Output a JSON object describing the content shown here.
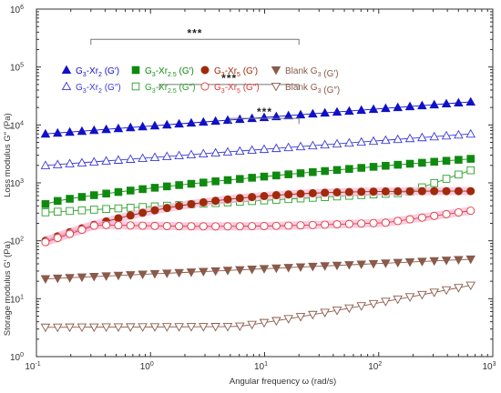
{
  "chart_data": {
    "type": "scatter",
    "title": "",
    "xlabel": "Angular frequency  ω  (rad/s)",
    "ylabel_top": "Loss modulus G″ (Pa)",
    "ylabel_bottom": "Storage modulus G′ (Pa)",
    "x_scale": "log",
    "y_scale": "log",
    "xlim": [
      0.1,
      1000
    ],
    "ylim": [
      1,
      1000000
    ],
    "x_ticks": [
      {
        "value": 0.1,
        "base": "10",
        "exp": "-1"
      },
      {
        "value": 1,
        "base": "10",
        "exp": "0"
      },
      {
        "value": 10,
        "base": "10",
        "exp": "1"
      },
      {
        "value": 100,
        "base": "10",
        "exp": "2"
      },
      {
        "value": 1000,
        "base": "10",
        "exp": "3"
      }
    ],
    "y_ticks": [
      {
        "value": 1,
        "base": "10",
        "exp": "0"
      },
      {
        "value": 10,
        "base": "10",
        "exp": "1"
      },
      {
        "value": 100,
        "base": "10",
        "exp": "2"
      },
      {
        "value": 1000,
        "base": "10",
        "exp": "3"
      },
      {
        "value": 10000,
        "base": "10",
        "exp": "4"
      },
      {
        "value": 100000,
        "base": "10",
        "exp": "5"
      },
      {
        "value": 1000000,
        "base": "10",
        "exp": "6"
      }
    ],
    "legend_position": "top",
    "legend_layout": "2 rows x 4 columns",
    "series": [
      {
        "name_main": "G",
        "name_sub": "3",
        "name_rest": "-Xr",
        "name_sub2": "2",
        "name_mod": " (G′)",
        "color": "#1010c8",
        "marker": "triangle-up",
        "filled": true,
        "x_range": [
          0.12,
          640
        ],
        "y_start": 7000,
        "y_end": 25000,
        "shape": "linear"
      },
      {
        "name_main": "G",
        "name_sub": "3",
        "name_rest": "-Xr",
        "name_sub2": "2",
        "name_mod": " (G″)",
        "color": "#3a3ad8",
        "marker": "triangle-up",
        "filled": false,
        "x_range": [
          0.12,
          640
        ],
        "y_start": 2000,
        "y_end": 7000,
        "shape": "linear"
      },
      {
        "name_main": "G",
        "name_sub": "3",
        "name_rest": "-Xr",
        "name_sub2": "2.5",
        "name_mod": " (G′)",
        "color": "#0f8a0f",
        "marker": "square",
        "filled": true,
        "x_range": [
          0.12,
          640
        ],
        "y_start": 430,
        "y_end": 2600,
        "shape": "concave"
      },
      {
        "name_main": "G",
        "name_sub": "3",
        "name_rest": "-Xr",
        "name_sub2": "2.5",
        "name_mod": " (G″)",
        "color": "#2aa02a",
        "marker": "square",
        "filled": false,
        "x_range": [
          0.12,
          640
        ],
        "y_start": 310,
        "y_end": 1650,
        "shape": "late-rise"
      },
      {
        "name_main": "G",
        "name_sub": "3",
        "name_rest": "-Xr",
        "name_sub2": "5",
        "name_mod": " (G′)",
        "color": "#a02a0a",
        "marker": "circle",
        "filled": true,
        "x_range": [
          0.12,
          640
        ],
        "y_start": 100,
        "y_end": 720,
        "shape": "fast-rise"
      },
      {
        "name_main": "G",
        "name_sub": "3",
        "name_rest": "-Xr",
        "name_sub2": "5",
        "name_mod": " (G″)",
        "color": "#e03a3a",
        "marker": "circle",
        "filled": false,
        "x_range": [
          0.12,
          640
        ],
        "y_start": 95,
        "y_end": 330,
        "shape": "hump"
      },
      {
        "name_main": "Blank G",
        "name_sub": "3",
        "name_rest": "",
        "name_sub2": "",
        "name_mod": " (G′)",
        "color": "#8a5a4a",
        "marker": "triangle-down",
        "filled": true,
        "x_range": [
          0.12,
          640
        ],
        "y_start": 22,
        "y_end": 48,
        "shape": "linear"
      },
      {
        "name_main": "Blank G",
        "name_sub": "3",
        "name_rest": "",
        "name_sub2": "",
        "name_mod": " (G″)",
        "color": "#8a5a4a",
        "marker": "triangle-down",
        "filled": false,
        "x_range": [
          0.12,
          640
        ],
        "y_start": 3.2,
        "y_end": 17,
        "shape": "late-rise-2"
      }
    ],
    "significance": [
      {
        "label": "***",
        "x_from": 0.3,
        "x_to": 20,
        "y": 300000
      },
      {
        "label": "***",
        "x_from": 1.2,
        "x_to": 20,
        "y": 50000
      },
      {
        "label": "***",
        "x_from": 5,
        "x_to": 20,
        "y": 13000
      }
    ]
  }
}
